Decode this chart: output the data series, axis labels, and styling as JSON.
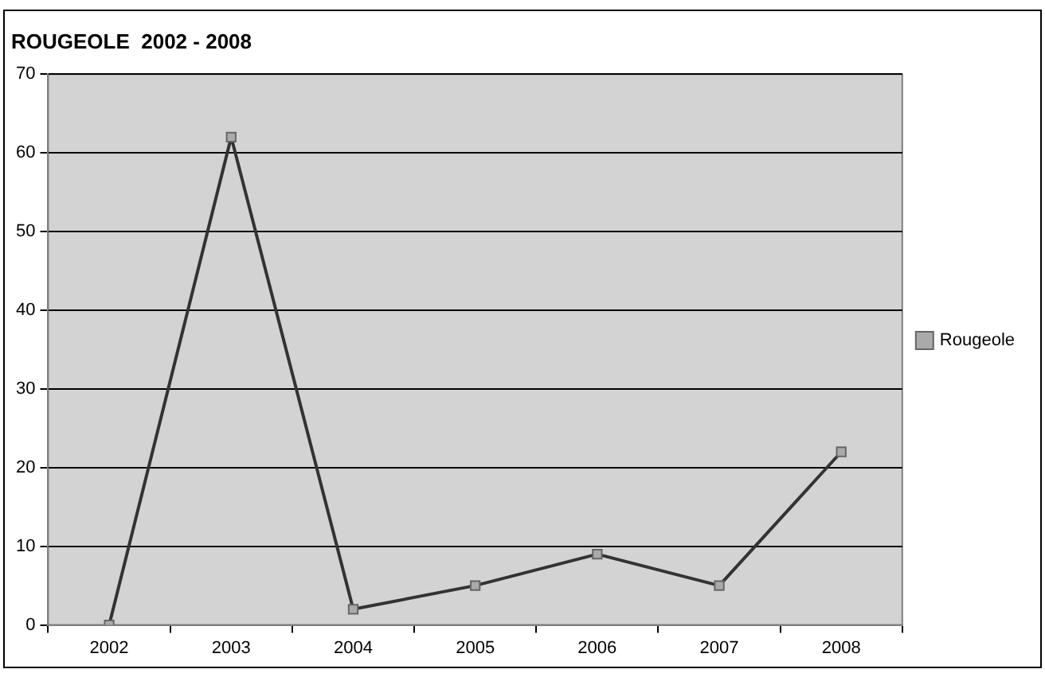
{
  "chart_data": {
    "type": "line",
    "title": "ROUGEOLE  2002 - 2008",
    "categories": [
      "2002",
      "2003",
      "2004",
      "2005",
      "2006",
      "2007",
      "2008"
    ],
    "series": [
      {
        "name": "Rougeole",
        "color": "#333333",
        "values": [
          0,
          62,
          2,
          5,
          9,
          5,
          22
        ]
      }
    ],
    "ylim": [
      0,
      70
    ],
    "yticks": [
      0,
      10,
      20,
      30,
      40,
      50,
      60,
      70
    ],
    "grid": "y",
    "legend": "right",
    "marker": "square",
    "line_style": "solid"
  }
}
